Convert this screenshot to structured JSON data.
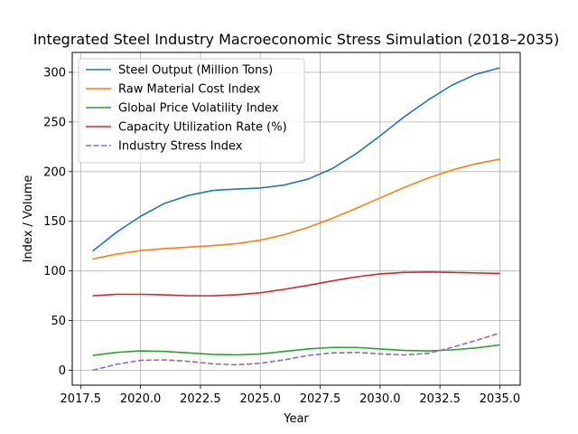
{
  "chart_data": {
    "type": "line",
    "title": "Integrated Steel Industry Macroeconomic Stress Simulation (2018–2035)",
    "xlabel": "Year",
    "ylabel": "Index / Volume",
    "xlim": [
      2017.15,
      2035.85
    ],
    "ylim": [
      -15,
      320
    ],
    "x": [
      2018,
      2019,
      2020,
      2021,
      2022,
      2023,
      2024,
      2025,
      2026,
      2027,
      2028,
      2029,
      2030,
      2031,
      2032,
      2033,
      2034,
      2035
    ],
    "x_ticks": [
      2017.5,
      2020.0,
      2022.5,
      2025.0,
      2027.5,
      2030.0,
      2032.5,
      2035.0
    ],
    "x_tick_labels": [
      "2017.5",
      "2020.0",
      "2022.5",
      "2025.0",
      "2027.5",
      "2030.0",
      "2032.5",
      "2035.0"
    ],
    "y_ticks": [
      0,
      50,
      100,
      150,
      200,
      250,
      300
    ],
    "y_tick_labels": [
      "0",
      "50",
      "100",
      "150",
      "200",
      "250",
      "300"
    ],
    "grid": true,
    "legend_position": "top-left",
    "series": [
      {
        "name": "Steel Output (Million Tons)",
        "color": "#1f77b4",
        "style": "solid",
        "values": [
          120,
          139,
          155,
          168,
          176,
          181,
          182.5,
          183.5,
          186.5,
          192.5,
          203,
          218,
          236,
          255,
          272,
          287,
          298,
          304.5
        ]
      },
      {
        "name": "Raw Material Cost Index",
        "color": "#ff7f0e",
        "style": "solid",
        "values": [
          112,
          117,
          120.5,
          122.5,
          124,
          125.5,
          127.5,
          131,
          136.5,
          144,
          153,
          163,
          173.5,
          184,
          193.5,
          201.5,
          208,
          212.5
        ]
      },
      {
        "name": "Global Price Volatility Index",
        "color": "#2ca02c",
        "style": "solid",
        "values": [
          15,
          18,
          19.5,
          19,
          17.5,
          16,
          15.5,
          16.5,
          19,
          21.5,
          23,
          23,
          21.5,
          20,
          19.5,
          20.5,
          22.5,
          25.5
        ]
      },
      {
        "name": "Capacity Utilization Rate (%)",
        "color": "#d62728",
        "style": "solid",
        "values": [
          75,
          76.5,
          76.5,
          76,
          75,
          75,
          76,
          78,
          81.5,
          85.5,
          90,
          94,
          97,
          98.5,
          99,
          98.5,
          98,
          97.5
        ]
      },
      {
        "name": "Industry Stress Index",
        "color": "#9467bd",
        "style": "dashed",
        "values": [
          0,
          6,
          10,
          10.5,
          9,
          6.5,
          5.5,
          7,
          10.5,
          15,
          17.5,
          18,
          16.5,
          15.5,
          17,
          23,
          30,
          37.5
        ]
      }
    ]
  }
}
